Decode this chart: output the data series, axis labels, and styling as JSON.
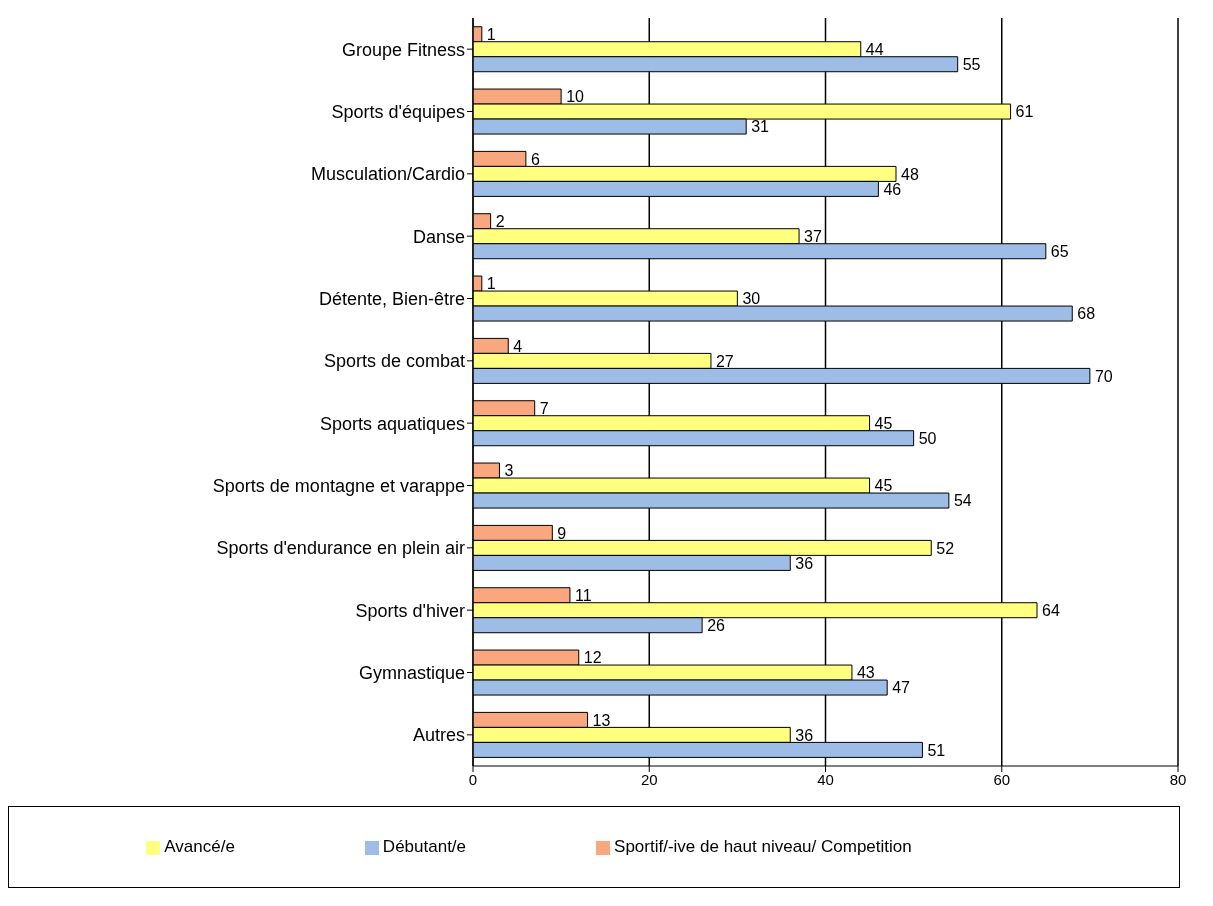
{
  "chart_data": {
    "type": "bar",
    "orientation": "horizontal",
    "categories": [
      "Groupe Fitness",
      "Sports d'équipes",
      "Musculation/Cardio",
      "Danse",
      "Détente, Bien-être",
      "Sports de combat",
      "Sports aquatiques",
      "Sports de montagne et varappe",
      "Sports d'endurance en plein air",
      "Sports d'hiver",
      "Gymnastique",
      "Autres"
    ],
    "series": [
      {
        "name": "Sportif/-ive de haut niveau/ Competition",
        "color": "#f9a77e",
        "values": [
          1,
          10,
          6,
          2,
          1,
          4,
          7,
          3,
          9,
          11,
          12,
          13
        ]
      },
      {
        "name": "Avancé/e",
        "color": "#ffff80",
        "values": [
          44,
          61,
          48,
          37,
          30,
          27,
          45,
          45,
          52,
          64,
          43,
          36
        ]
      },
      {
        "name": "Débutant/e",
        "color": "#9dbde6",
        "values": [
          55,
          31,
          46,
          65,
          68,
          70,
          50,
          54,
          36,
          26,
          47,
          51
        ]
      }
    ],
    "xlim": [
      0,
      80
    ],
    "xticks": [
      0,
      20,
      40,
      60,
      80
    ],
    "grid": "x",
    "legend": "bottom",
    "data_labels": true
  }
}
